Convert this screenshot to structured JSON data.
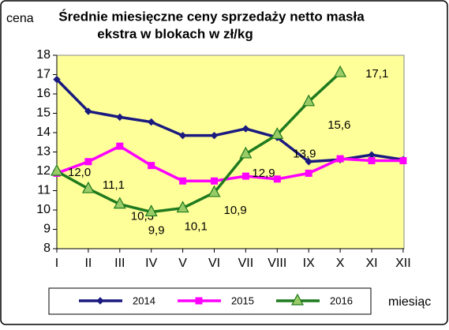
{
  "chart_data": {
    "type": "line",
    "title": [
      "Średnie miesięczne ceny sprzedaży netto masła",
      "ekstra w blokach w zł/kg"
    ],
    "y_label": "cena",
    "x_label": "miesiąc",
    "categories": [
      "I",
      "II",
      "III",
      "IV",
      "V",
      "VI",
      "VII",
      "VIII",
      "IX",
      "X",
      "XI",
      "XII"
    ],
    "ylim": [
      8,
      18
    ],
    "yticks": [
      8,
      9,
      10,
      11,
      12,
      13,
      14,
      15,
      16,
      17,
      18
    ],
    "grid": false,
    "background": "#ffff99",
    "series": [
      {
        "name": "2014",
        "color": "#1a1a80",
        "marker": "diamond",
        "values": [
          16.75,
          15.1,
          14.8,
          14.55,
          13.85,
          13.85,
          14.2,
          13.75,
          12.5,
          12.6,
          12.85,
          12.6
        ]
      },
      {
        "name": "2015",
        "color": "#ff00ff",
        "marker": "square",
        "values": [
          11.9,
          12.5,
          13.3,
          12.3,
          11.5,
          11.5,
          11.75,
          11.6,
          11.9,
          12.65,
          12.55,
          12.55
        ]
      },
      {
        "name": "2016",
        "color": "#1f7a1f",
        "marker": "triangle",
        "values": [
          12.0,
          11.1,
          10.3,
          9.9,
          10.1,
          10.9,
          12.9,
          13.9,
          15.6,
          17.1,
          null,
          null
        ],
        "value_labels": [
          "12,0",
          "11,1",
          "10,3",
          "9,9",
          "10,1",
          "10,9",
          "12,9",
          "13,9",
          "15,6",
          "17,1",
          null,
          null
        ]
      }
    ]
  }
}
